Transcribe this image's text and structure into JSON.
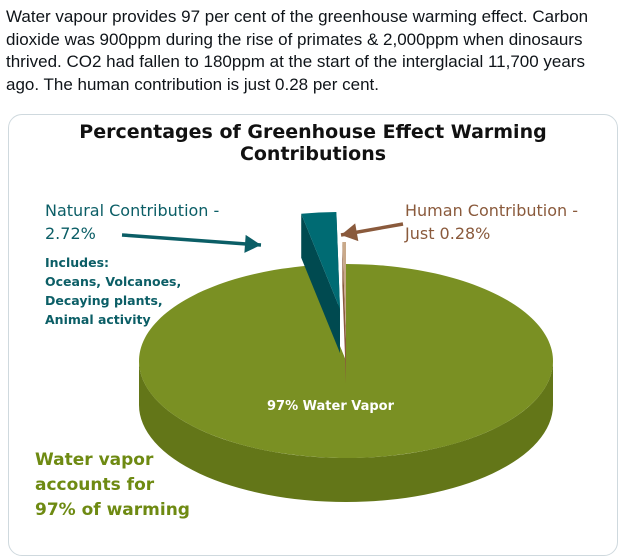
{
  "tweet": {
    "text": "Water vapour provides 97 per cent of the greenhouse warming effect. Carbon dioxide was 900ppm during the rise of primates & 2,000ppm when dinosaurs thrived. CO2 had fallen to 180ppm at the start of the interglacial 11,700 years ago. The human contribution is just 0.28 per cent."
  },
  "chart_data": {
    "type": "pie",
    "title": "Percentages of Greenhouse Effect Warming Contributions",
    "slices": [
      {
        "name": "Water Vapor",
        "value": 97,
        "label": "97% Water Vapor",
        "color": "#7a9023",
        "side_color": "#637618"
      },
      {
        "name": "Natural Contribution",
        "value": 2.72,
        "color": "#006b73",
        "side_color": "#004a50"
      },
      {
        "name": "Human Contribution",
        "value": 0.28,
        "color": "#c9a98a",
        "side_color": "#8a5a3c"
      }
    ],
    "annotations": {
      "natural_line1": "Natural Contribution -",
      "natural_line2": "2.72%",
      "includes": [
        "Includes:",
        "Oceans, Volcanoes,",
        "Decaying plants,",
        "Animal activity"
      ],
      "human_line1": "Human Contribution -",
      "human_line2": "Just 0.28%",
      "water_note": [
        "Water vapor",
        "accounts for",
        "97% of warming"
      ]
    },
    "colors": {
      "natural_arrow": "#0b5e66",
      "human_arrow": "#8a5a3c"
    }
  }
}
